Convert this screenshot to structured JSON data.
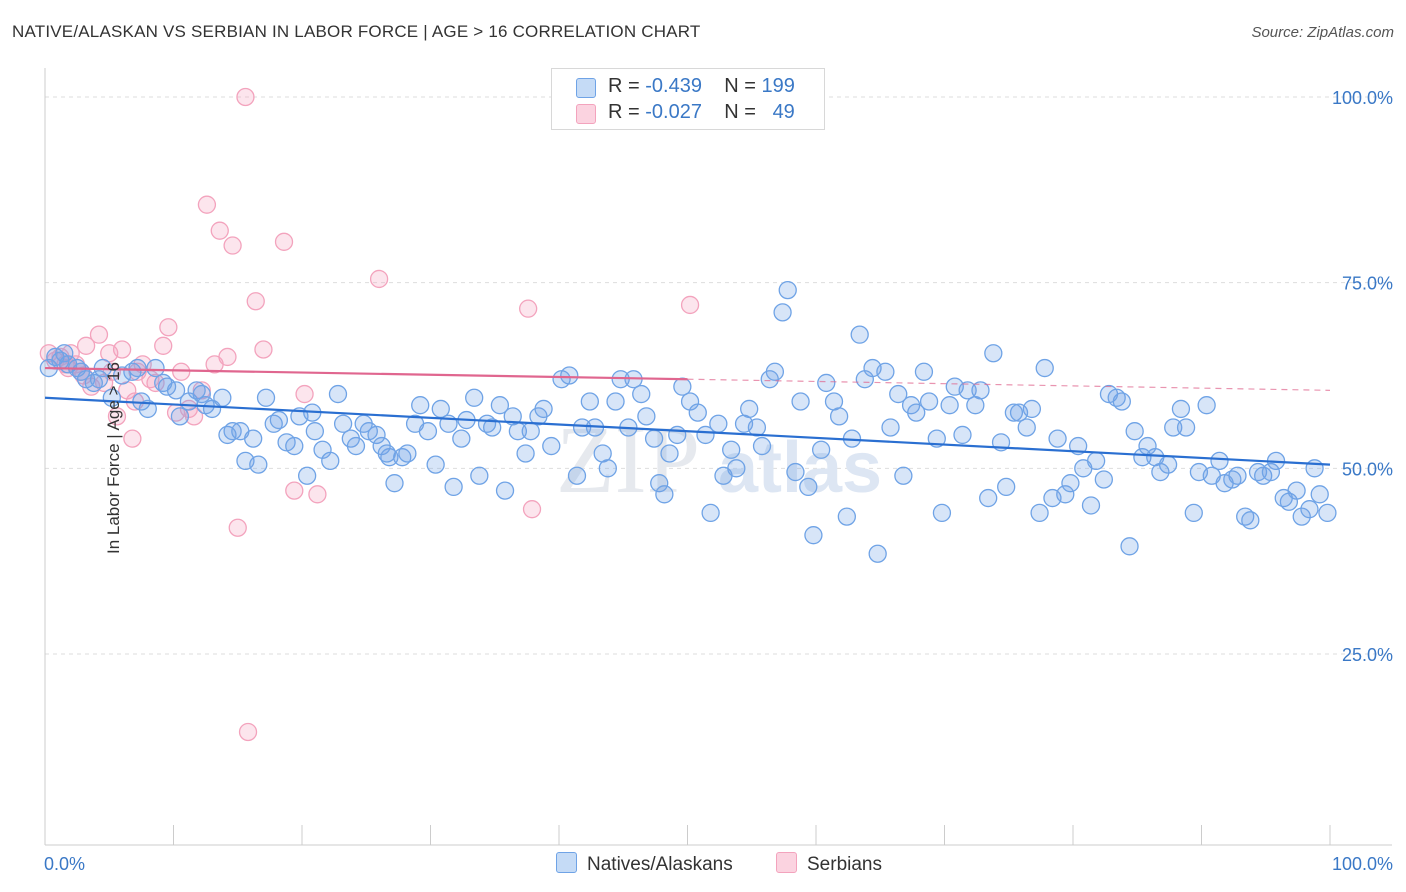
{
  "title": "NATIVE/ALASKAN VS SERBIAN IN LABOR FORCE | AGE > 16 CORRELATION CHART",
  "source": "Source: ZipAtlas.com",
  "watermark": {
    "zip": "ZIP",
    "atlas": "atlas"
  },
  "legend": {
    "natives": {
      "r_label": "R =",
      "r_value": "-0.439",
      "n_label": "N =",
      "n_value": "199",
      "color": "#6fa3e6"
    },
    "serbians": {
      "r_label": "R =",
      "r_value": "-0.027",
      "n_label": "N =",
      "n_value": "49",
      "color": "#f3a3bd"
    }
  },
  "bottom_legend": {
    "natives": "Natives/Alaskans",
    "serbians": "Serbians"
  },
  "chart_data": {
    "type": "scatter",
    "title": "NATIVE/ALASKAN VS SERBIAN IN LABOR FORCE | AGE > 16 CORRELATION CHART",
    "xlabel": "",
    "ylabel": "In Labor Force | Age > 16",
    "xlim": [
      0,
      100
    ],
    "ylim": [
      0,
      105
    ],
    "x_tick_labels": [
      "0.0%",
      "100.0%"
    ],
    "y_tick_labels": [
      "25.0%",
      "50.0%",
      "75.0%",
      "100.0%"
    ],
    "y_ticks": [
      25,
      50,
      75,
      100
    ],
    "grid": true,
    "legend_position": "top-center",
    "series": [
      {
        "name": "Natives/Alaskans",
        "color": "#6fa3e6",
        "line_color": "#2a6fd1",
        "trend": {
          "x": [
            0,
            100
          ],
          "y": [
            59.5,
            50.5
          ]
        },
        "points": [
          [
            0.3,
            63.5
          ],
          [
            0.8,
            65
          ],
          [
            1.2,
            64.5
          ],
          [
            1.8,
            64
          ],
          [
            2.5,
            63.5
          ],
          [
            3.2,
            62
          ],
          [
            3.8,
            61.5
          ],
          [
            4.5,
            63.5
          ],
          [
            5.2,
            59.5
          ],
          [
            6,
            62.5
          ],
          [
            6.8,
            63
          ],
          [
            7.5,
            59
          ],
          [
            8,
            58
          ],
          [
            8.6,
            63.5
          ],
          [
            9.5,
            61
          ],
          [
            10.2,
            60.5
          ],
          [
            10.5,
            57
          ],
          [
            11.2,
            59
          ],
          [
            11.8,
            60.5
          ],
          [
            12.5,
            58.5
          ],
          [
            13,
            58
          ],
          [
            13.8,
            59.5
          ],
          [
            14.2,
            54.5
          ],
          [
            14.6,
            55
          ],
          [
            15.2,
            55
          ],
          [
            15.6,
            51
          ],
          [
            16.2,
            54
          ],
          [
            16.6,
            50.5
          ],
          [
            17.2,
            59.5
          ],
          [
            17.8,
            56
          ],
          [
            18.2,
            56.5
          ],
          [
            18.8,
            53.5
          ],
          [
            19.4,
            53
          ],
          [
            19.8,
            57
          ],
          [
            20.4,
            49
          ],
          [
            21,
            55
          ],
          [
            21.6,
            52.5
          ],
          [
            22.2,
            51
          ],
          [
            22.8,
            60
          ],
          [
            23.2,
            56
          ],
          [
            23.8,
            54
          ],
          [
            24.2,
            53
          ],
          [
            24.8,
            56
          ],
          [
            25.2,
            55
          ],
          [
            25.8,
            54.5
          ],
          [
            26.2,
            53
          ],
          [
            26.8,
            51.5
          ],
          [
            27.2,
            48
          ],
          [
            27.8,
            51.5
          ],
          [
            28.2,
            52
          ],
          [
            28.8,
            56
          ],
          [
            29.2,
            58.5
          ],
          [
            29.8,
            55
          ],
          [
            30.4,
            50.5
          ],
          [
            30.8,
            58
          ],
          [
            31.4,
            56
          ],
          [
            31.8,
            47.5
          ],
          [
            32.4,
            54
          ],
          [
            32.8,
            56.5
          ],
          [
            33.4,
            59.5
          ],
          [
            33.8,
            49
          ],
          [
            34.4,
            56
          ],
          [
            34.8,
            55.5
          ],
          [
            35.4,
            58.5
          ],
          [
            35.8,
            47
          ],
          [
            36.4,
            57
          ],
          [
            36.8,
            55
          ],
          [
            37.4,
            52
          ],
          [
            37.8,
            55
          ],
          [
            38.4,
            57
          ],
          [
            38.8,
            58
          ],
          [
            39.4,
            53
          ],
          [
            40.2,
            62
          ],
          [
            40.8,
            62.5
          ],
          [
            41.4,
            49
          ],
          [
            41.8,
            55.5
          ],
          [
            42.4,
            59
          ],
          [
            42.8,
            55.5
          ],
          [
            43.4,
            52
          ],
          [
            43.8,
            50
          ],
          [
            44.4,
            59
          ],
          [
            44.8,
            62
          ],
          [
            45.4,
            55.5
          ],
          [
            45.8,
            62
          ],
          [
            46.4,
            60
          ],
          [
            46.8,
            57
          ],
          [
            47.4,
            54
          ],
          [
            47.8,
            48
          ],
          [
            48.2,
            46.5
          ],
          [
            48.6,
            52
          ],
          [
            49.2,
            54.5
          ],
          [
            49.6,
            61
          ],
          [
            50.2,
            59
          ],
          [
            50.8,
            57.5
          ],
          [
            51.4,
            54.5
          ],
          [
            51.8,
            44
          ],
          [
            52.4,
            56
          ],
          [
            52.8,
            49
          ],
          [
            53.4,
            52.5
          ],
          [
            53.8,
            50
          ],
          [
            54.4,
            56
          ],
          [
            54.8,
            58
          ],
          [
            55.4,
            55.5
          ],
          [
            55.8,
            53
          ],
          [
            56.4,
            62
          ],
          [
            56.8,
            63
          ],
          [
            57.4,
            71
          ],
          [
            57.8,
            74
          ],
          [
            58.4,
            49.5
          ],
          [
            58.8,
            59
          ],
          [
            59.4,
            47.5
          ],
          [
            59.8,
            41
          ],
          [
            60.4,
            52.5
          ],
          [
            60.8,
            61.5
          ],
          [
            61.4,
            59
          ],
          [
            61.8,
            57
          ],
          [
            62.4,
            43.5
          ],
          [
            62.8,
            54
          ],
          [
            63.4,
            68
          ],
          [
            63.8,
            62
          ],
          [
            64.4,
            63.5
          ],
          [
            64.8,
            38.5
          ],
          [
            65.4,
            63
          ],
          [
            65.8,
            55.5
          ],
          [
            66.4,
            60
          ],
          [
            66.8,
            49
          ],
          [
            67.4,
            58.5
          ],
          [
            67.8,
            57.5
          ],
          [
            68.4,
            63
          ],
          [
            68.8,
            59
          ],
          [
            69.4,
            54
          ],
          [
            69.8,
            44
          ],
          [
            70.4,
            58.5
          ],
          [
            70.8,
            61
          ],
          [
            71.4,
            54.5
          ],
          [
            71.8,
            60.5
          ],
          [
            72.4,
            58.5
          ],
          [
            72.8,
            60.5
          ],
          [
            73.4,
            46
          ],
          [
            73.8,
            65.5
          ],
          [
            74.4,
            53.5
          ],
          [
            74.8,
            47.5
          ],
          [
            75.4,
            57.5
          ],
          [
            75.8,
            57.5
          ],
          [
            76.4,
            55.5
          ],
          [
            76.8,
            58
          ],
          [
            77.4,
            44
          ],
          [
            77.8,
            63.5
          ],
          [
            78.4,
            46
          ],
          [
            78.8,
            54
          ],
          [
            79.4,
            46.5
          ],
          [
            79.8,
            48
          ],
          [
            80.4,
            53
          ],
          [
            80.8,
            50
          ],
          [
            81.4,
            45
          ],
          [
            81.8,
            51
          ],
          [
            82.4,
            48.5
          ],
          [
            82.8,
            60
          ],
          [
            83.4,
            59.5
          ],
          [
            83.8,
            59
          ],
          [
            84.4,
            39.5
          ],
          [
            84.8,
            55
          ],
          [
            85.4,
            51.5
          ],
          [
            85.8,
            53
          ],
          [
            86.4,
            51.5
          ],
          [
            86.8,
            49.5
          ],
          [
            87.4,
            50.5
          ],
          [
            87.8,
            55.5
          ],
          [
            88.4,
            58
          ],
          [
            88.8,
            55.5
          ],
          [
            89.4,
            44
          ],
          [
            89.8,
            49.5
          ],
          [
            90.4,
            58.5
          ],
          [
            90.8,
            49
          ],
          [
            91.4,
            51
          ],
          [
            91.8,
            48
          ],
          [
            92.4,
            48.5
          ],
          [
            92.8,
            49
          ],
          [
            93.4,
            43.5
          ],
          [
            93.8,
            43
          ],
          [
            94.4,
            49.5
          ],
          [
            94.8,
            49
          ],
          [
            95.4,
            49.5
          ],
          [
            95.8,
            51
          ],
          [
            96.4,
            46
          ],
          [
            96.8,
            45.5
          ],
          [
            97.4,
            47
          ],
          [
            97.8,
            43.5
          ],
          [
            98.4,
            44.5
          ],
          [
            98.8,
            50
          ],
          [
            99.2,
            46.5
          ],
          [
            99.8,
            44
          ],
          [
            1.5,
            65.5
          ],
          [
            2.8,
            63
          ],
          [
            4.2,
            62
          ],
          [
            7.2,
            63.5
          ],
          [
            9.2,
            61.5
          ],
          [
            12.2,
            60
          ],
          [
            20.8,
            57.5
          ],
          [
            26.6,
            52
          ]
        ]
      },
      {
        "name": "Serbians",
        "color": "#f3a3bd",
        "line_color": "#e0668f",
        "trend": {
          "x": [
            0,
            50
          ],
          "y": [
            63.5,
            62
          ]
        },
        "trend_dashed": {
          "x": [
            50,
            100
          ],
          "y": [
            62,
            60.5
          ]
        },
        "points": [
          [
            0.3,
            65.5
          ],
          [
            0.8,
            64.5
          ],
          [
            1.2,
            65
          ],
          [
            1.6,
            64
          ],
          [
            2,
            65.5
          ],
          [
            2.4,
            64
          ],
          [
            2.8,
            63
          ],
          [
            3.2,
            66.5
          ],
          [
            3.6,
            61
          ],
          [
            4.2,
            68
          ],
          [
            4.6,
            61.5
          ],
          [
            5.2,
            63
          ],
          [
            5.6,
            57
          ],
          [
            6,
            66
          ],
          [
            6.4,
            60.5
          ],
          [
            6.8,
            54
          ],
          [
            7.2,
            63
          ],
          [
            7.6,
            64
          ],
          [
            8.2,
            62
          ],
          [
            8.6,
            61.5
          ],
          [
            9.2,
            66.5
          ],
          [
            9.6,
            69
          ],
          [
            10.2,
            57.5
          ],
          [
            10.6,
            63
          ],
          [
            11.2,
            58
          ],
          [
            11.6,
            57
          ],
          [
            12.2,
            60.5
          ],
          [
            12.6,
            85.5
          ],
          [
            13.2,
            64
          ],
          [
            13.6,
            82
          ],
          [
            14.2,
            65
          ],
          [
            14.6,
            80
          ],
          [
            15,
            42
          ],
          [
            15.6,
            100
          ],
          [
            15.8,
            14.5
          ],
          [
            16.4,
            72.5
          ],
          [
            17,
            66
          ],
          [
            18.6,
            80.5
          ],
          [
            19.4,
            47
          ],
          [
            20.2,
            60
          ],
          [
            21.2,
            46.5
          ],
          [
            26,
            75.5
          ],
          [
            37.6,
            71.5
          ],
          [
            37.9,
            44.5
          ],
          [
            50.2,
            72
          ],
          [
            1.8,
            63.5
          ],
          [
            3,
            62.5
          ],
          [
            5,
            65.5
          ],
          [
            7,
            59
          ]
        ]
      }
    ]
  }
}
